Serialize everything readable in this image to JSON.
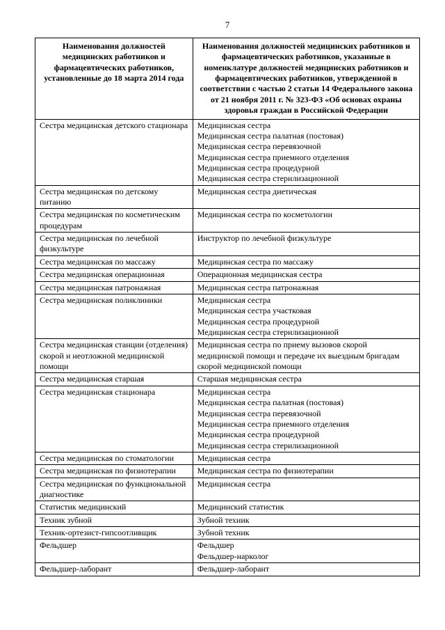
{
  "page_number": "7",
  "columns": {
    "left_header": "Наименования должностей медицинских работников и фармацевтических работников, установленные до 18 марта 2014 года",
    "right_header": "Наименования должностей медицинских работников и фармацевтических работников, указанные в номенклатуре должностей медицинских работников и фармацевтических работников, утвержденной в соответствии с частью 2 статьи 14 Федерального закона от 21 ноября 2011 г. № 323-ФЗ «Об основах охраны здоровья граждан в Российской Федерации"
  },
  "rows": [
    {
      "left": "Сестра медицинская детского стационара",
      "right": [
        "Медицинская сестра",
        "Медицинская сестра палатная (постовая)",
        "Медицинская сестра перевязочной",
        "Медицинская сестра приемного отделения",
        "Медицинская сестра процедурной",
        "Медицинская сестра стерилизационной"
      ]
    },
    {
      "left": "Сестра медицинская по детскому питанию",
      "right": [
        "Медицинская сестра диетическая"
      ]
    },
    {
      "left": "Сестра медицинская по косметическим процедурам",
      "right": [
        "Медицинская сестра по косметологии"
      ]
    },
    {
      "left": "Сестра медицинская по лечебной физкультуре",
      "right": [
        "Инструктор по лечебной физкультуре"
      ]
    },
    {
      "left": "Сестра медицинская по массажу",
      "right": [
        "Медицинская сестра по массажу"
      ]
    },
    {
      "left": "Сестра медицинская операционная",
      "right": [
        "Операционная медицинская сестра"
      ]
    },
    {
      "left": "Сестра медицинская патронажная",
      "right": [
        "Медицинская сестра патронажная"
      ]
    },
    {
      "left": "Сестра медицинская поликлиники",
      "right": [
        "Медицинская сестра",
        "Медицинская сестра участковая",
        "Медицинская сестра процедурной",
        "Медицинская сестра стерилизационной"
      ]
    },
    {
      "left": "Сестра медицинская станции (отделения) скорой и неотложной медицинской помощи",
      "right": [
        "Медицинская сестра по приему вызовов скорой медицинской помощи и передаче их выездным бригадам скорой медицинской помощи"
      ]
    },
    {
      "left": "Сестра медицинская старшая",
      "right": [
        "Старшая медицинская сестра"
      ]
    },
    {
      "left": "Сестра медицинская стационара",
      "right": [
        "Медицинская сестра",
        "Медицинская сестра палатная (постовая)",
        "Медицинская сестра перевязочной",
        "Медицинская сестра приемного отделения",
        "Медицинская сестра процедурной",
        "Медицинская сестра стерилизационной"
      ]
    },
    {
      "left": "Сестра медицинская по стоматологии",
      "right": [
        "Медицинская сестра"
      ]
    },
    {
      "left": "Сестра медицинская по физиотерапии",
      "right": [
        "Медицинская сестра по физиотерапии"
      ]
    },
    {
      "left": "Сестра медицинская по функциональной диагностике",
      "right": [
        "Медицинская сестра"
      ]
    },
    {
      "left": "Статистик медицинский",
      "right": [
        "Медицинский статистик"
      ]
    },
    {
      "left": "Техник зубной",
      "right": [
        "Зубной техник"
      ]
    },
    {
      "left": "Техник-ортезист-гипсоотливщик",
      "right": [
        "Зубной техник"
      ]
    },
    {
      "left": "Фельдшер",
      "right": [
        "Фельдшер",
        "Фельдшер-нарколог"
      ]
    },
    {
      "left": "Фельдшер-лаборант",
      "right": [
        "Фельдшер-лаборант"
      ]
    }
  ]
}
